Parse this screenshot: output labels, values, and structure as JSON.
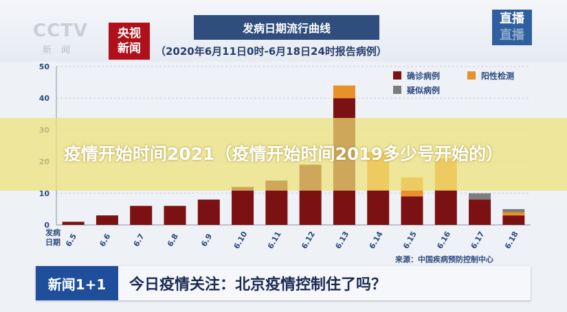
{
  "header": {
    "cctv_logo": "CCTV",
    "cctv_sub": "新闻",
    "news_logo_line1": "央视",
    "news_logo_line2": "新闻",
    "live_logo_line1": "直播",
    "live_logo_line2": "直播"
  },
  "overlay": {
    "text": "疫情开始时间2021（疫情开始时间2019多少号开始的）"
  },
  "ticker": {
    "logo": "新闻1+1",
    "headline": "今日疫情关注：北京疫情控制住了吗？"
  },
  "chart_data": {
    "type": "bar",
    "stacked": true,
    "title": "发病日期流行曲线",
    "subtitle": "（2020年6月11日0时-6月18日24时报告病例）",
    "xlabel": "发病日期",
    "source": "来源：中国疾病预防控制中心",
    "categories": [
      "6.5",
      "6.6",
      "6.7",
      "6.8",
      "6.9",
      "6.10",
      "6.11",
      "6.12",
      "6.13",
      "6.14",
      "6.15",
      "6.16",
      "6.17",
      "6.18"
    ],
    "ylim": [
      0,
      50
    ],
    "yticks": [
      0,
      10,
      20,
      30,
      40,
      50
    ],
    "grid": true,
    "legend_position": "top-right",
    "series": [
      {
        "name": "确诊病例",
        "color": "#7b1112",
        "values": [
          1,
          3,
          6,
          6,
          8,
          12,
          14,
          19,
          40,
          11,
          9,
          11,
          8,
          3
        ]
      },
      {
        "name": "阳性检测",
        "color": "#e8902b",
        "values": [
          0,
          0,
          0,
          0,
          0,
          0,
          0,
          0,
          4,
          12,
          6,
          10,
          0,
          1
        ]
      },
      {
        "name": "疑似病例",
        "color": "#7d7d7d",
        "values": [
          0,
          0,
          0,
          0,
          0,
          0,
          0,
          0,
          0,
          0,
          0,
          0,
          2,
          1
        ]
      }
    ]
  }
}
